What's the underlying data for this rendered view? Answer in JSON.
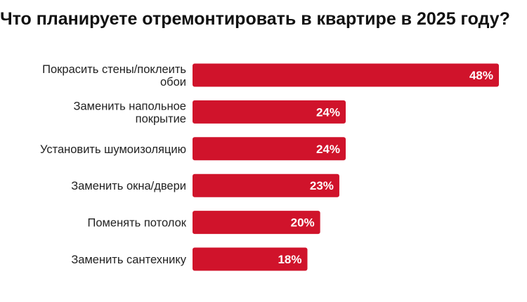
{
  "chart_data": {
    "type": "bar",
    "orientation": "horizontal",
    "title": "Что планируете отремонтировать в квартире в 2025 году?",
    "categories": [
      [
        "Покрасить стены/поклеить",
        "обои"
      ],
      [
        "Заменить напольное",
        "покрытие"
      ],
      [
        "Установить шумоизоляцию"
      ],
      [
        "Заменить окна/двери"
      ],
      [
        "Поменять потолок"
      ],
      [
        "Заменить сантехнику"
      ]
    ],
    "values": [
      48,
      24,
      24,
      23,
      20,
      18
    ],
    "value_labels": [
      "48%",
      "24%",
      "24%",
      "23%",
      "20%",
      "18%"
    ],
    "unit": "%",
    "xlim": [
      0,
      48
    ],
    "bar_color": "#d0132b",
    "grid": false,
    "legend": "none"
  }
}
